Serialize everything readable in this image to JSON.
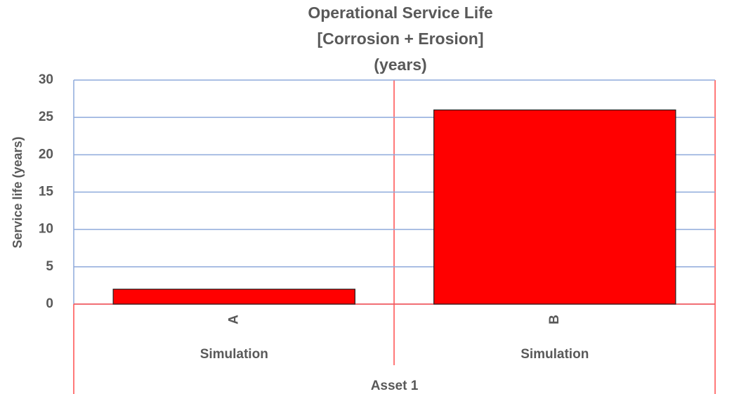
{
  "chart_data": {
    "type": "bar",
    "title": [
      "Operational Service Life",
      "[Corrosion + Erosion]",
      "(years)"
    ],
    "y_label": "Service life (years)",
    "categories": [
      "A",
      "B"
    ],
    "category_groups": [
      "Simulation",
      "Simulation"
    ],
    "super_category": "Asset 1",
    "values": [
      2,
      26
    ],
    "color": "#ff0000",
    "ylim": [
      0,
      30
    ],
    "yticks": [
      0,
      5,
      10,
      15,
      20,
      25,
      30
    ],
    "grid": true
  }
}
